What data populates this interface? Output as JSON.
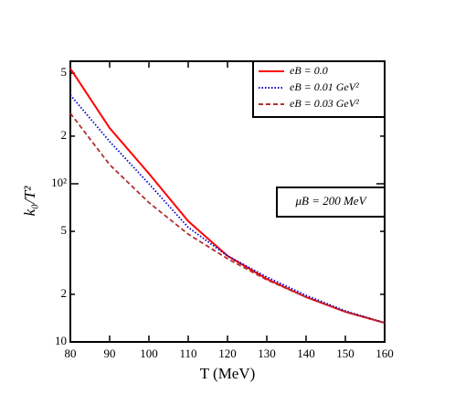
{
  "chart_data": {
    "type": "line",
    "xlabel": "T (MeV)",
    "ylabel": "k₀/T²",
    "annotation": "μB = 200 MeV",
    "x": [
      80,
      90,
      100,
      110,
      120,
      130,
      140,
      150,
      160
    ],
    "series": [
      {
        "name": "eB = 0.0",
        "color": "#ff0000",
        "style": "solid",
        "values": [
          535,
          225,
          116,
          58,
          35,
          25,
          19.2,
          15.5,
          13.2
        ]
      },
      {
        "name": "eB = 0.01 GeV²",
        "color": "#0000cc",
        "style": "dotted",
        "values": [
          364,
          185,
          100,
          53,
          35,
          25.7,
          19.7,
          15.7,
          13.2
        ]
      },
      {
        "name": "eB = 0.03 GeV²",
        "color": "#b03030",
        "style": "dashed",
        "values": [
          279,
          132,
          76,
          48,
          33.6,
          24.7,
          19.2,
          15.5,
          13.2
        ]
      }
    ],
    "xlim": [
      80,
      160
    ],
    "xticks": [
      80,
      90,
      100,
      110,
      120,
      130,
      140,
      150,
      160
    ],
    "ylim": [
      10,
      595
    ],
    "ylog": true,
    "yticks": [
      10,
      {
        "value": 20,
        "label": "2"
      },
      {
        "value": 50,
        "label": "5"
      },
      {
        "value": 100,
        "label": "10²"
      },
      {
        "value": 200,
        "label": "2"
      },
      {
        "value": 500,
        "label": "5"
      }
    ],
    "legend": "top-right"
  }
}
